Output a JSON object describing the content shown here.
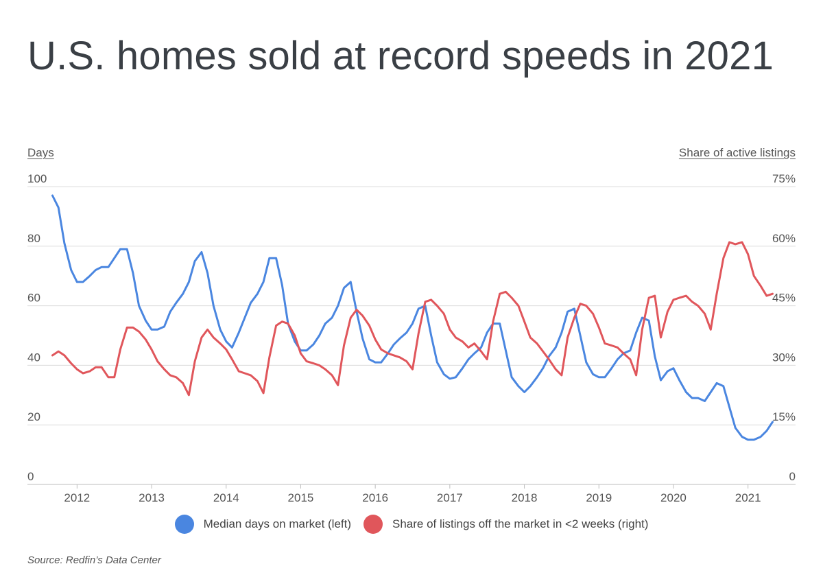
{
  "chart_data": {
    "type": "line",
    "title": "U.S. homes sold at record speeds in 2021",
    "left_axis": {
      "label": "Days",
      "min": 0,
      "max": 100,
      "ticks": [
        0,
        20,
        40,
        60,
        80,
        100
      ],
      "tick_labels": [
        "0",
        "20",
        "40",
        "60",
        "80",
        "100"
      ]
    },
    "right_axis": {
      "label": "Share of active listings",
      "min": 0,
      "max": 75,
      "ticks": [
        0,
        15,
        30,
        45,
        60,
        75
      ],
      "tick_labels": [
        "0",
        "15%",
        "30%",
        "45%",
        "60%",
        "75%"
      ]
    },
    "x_axis": {
      "min": 2011.5,
      "max": 2021.5,
      "ticks": [
        2012,
        2013,
        2014,
        2015,
        2016,
        2017,
        2018,
        2019,
        2020,
        2021
      ],
      "tick_labels": [
        "2012",
        "2013",
        "2014",
        "2015",
        "2016",
        "2017",
        "2018",
        "2019",
        "2020",
        "2021"
      ]
    },
    "grid": true,
    "legend": "bottom",
    "series": [
      {
        "name": "Median days on market (left)",
        "color": "#4a86e0",
        "axis": "left",
        "points": [
          [
            2011.67,
            97
          ],
          [
            2011.75,
            93
          ],
          [
            2011.83,
            81
          ],
          [
            2011.92,
            72
          ],
          [
            2012.0,
            68
          ],
          [
            2012.08,
            68
          ],
          [
            2012.17,
            70
          ],
          [
            2012.25,
            72
          ],
          [
            2012.33,
            73
          ],
          [
            2012.42,
            73
          ],
          [
            2012.5,
            76
          ],
          [
            2012.58,
            79
          ],
          [
            2012.67,
            79
          ],
          [
            2012.75,
            71
          ],
          [
            2012.83,
            60
          ],
          [
            2012.92,
            55
          ],
          [
            2013.0,
            52
          ],
          [
            2013.08,
            52
          ],
          [
            2013.17,
            53
          ],
          [
            2013.25,
            58
          ],
          [
            2013.33,
            61
          ],
          [
            2013.42,
            64
          ],
          [
            2013.5,
            68
          ],
          [
            2013.58,
            75
          ],
          [
            2013.67,
            78
          ],
          [
            2013.75,
            71
          ],
          [
            2013.83,
            60
          ],
          [
            2013.92,
            52
          ],
          [
            2014.0,
            48
          ],
          [
            2014.08,
            46
          ],
          [
            2014.17,
            51
          ],
          [
            2014.25,
            56
          ],
          [
            2014.33,
            61
          ],
          [
            2014.42,
            64
          ],
          [
            2014.5,
            68
          ],
          [
            2014.58,
            76
          ],
          [
            2014.67,
            76
          ],
          [
            2014.75,
            67
          ],
          [
            2014.83,
            54
          ],
          [
            2014.92,
            48
          ],
          [
            2015.0,
            45
          ],
          [
            2015.08,
            45
          ],
          [
            2015.17,
            47
          ],
          [
            2015.25,
            50
          ],
          [
            2015.33,
            54
          ],
          [
            2015.42,
            56
          ],
          [
            2015.5,
            60
          ],
          [
            2015.58,
            66
          ],
          [
            2015.67,
            68
          ],
          [
            2015.75,
            58
          ],
          [
            2015.83,
            49
          ],
          [
            2015.92,
            42
          ],
          [
            2016.0,
            41
          ],
          [
            2016.08,
            41
          ],
          [
            2016.17,
            44
          ],
          [
            2016.25,
            47
          ],
          [
            2016.33,
            49
          ],
          [
            2016.42,
            51
          ],
          [
            2016.5,
            54
          ],
          [
            2016.58,
            59
          ],
          [
            2016.67,
            60
          ],
          [
            2016.75,
            50
          ],
          [
            2016.83,
            41
          ],
          [
            2016.92,
            37
          ],
          [
            2017.0,
            35.5
          ],
          [
            2017.08,
            36
          ],
          [
            2017.17,
            39
          ],
          [
            2017.25,
            42
          ],
          [
            2017.33,
            44
          ],
          [
            2017.42,
            46
          ],
          [
            2017.5,
            51
          ],
          [
            2017.58,
            54
          ],
          [
            2017.67,
            54
          ],
          [
            2017.75,
            45
          ],
          [
            2017.83,
            36
          ],
          [
            2017.92,
            33
          ],
          [
            2018.0,
            31
          ],
          [
            2018.08,
            33
          ],
          [
            2018.17,
            36
          ],
          [
            2018.25,
            39
          ],
          [
            2018.33,
            43
          ],
          [
            2018.42,
            46
          ],
          [
            2018.5,
            51
          ],
          [
            2018.58,
            58
          ],
          [
            2018.67,
            59
          ],
          [
            2018.75,
            50
          ],
          [
            2018.83,
            41
          ],
          [
            2018.92,
            37
          ],
          [
            2019.0,
            36
          ],
          [
            2019.08,
            36
          ],
          [
            2019.17,
            39
          ],
          [
            2019.25,
            42
          ],
          [
            2019.33,
            44
          ],
          [
            2019.42,
            45
          ],
          [
            2019.5,
            51
          ],
          [
            2019.58,
            56
          ],
          [
            2019.67,
            55
          ],
          [
            2019.75,
            43
          ],
          [
            2019.83,
            35
          ],
          [
            2019.92,
            38
          ],
          [
            2020.0,
            39
          ],
          [
            2020.08,
            35
          ],
          [
            2020.17,
            31
          ],
          [
            2020.25,
            29
          ],
          [
            2020.33,
            29
          ],
          [
            2020.42,
            28
          ],
          [
            2020.5,
            31
          ],
          [
            2020.58,
            34
          ],
          [
            2020.67,
            33
          ],
          [
            2020.75,
            26
          ],
          [
            2020.83,
            19
          ],
          [
            2020.92,
            16
          ],
          [
            2021.0,
            15
          ],
          [
            2021.08,
            15
          ],
          [
            2021.17,
            16
          ],
          [
            2021.25,
            18
          ],
          [
            2021.33,
            21
          ]
        ]
      },
      {
        "name": "Share of listings off the market in <2 weeks (right)",
        "color": "#e0565b",
        "axis": "right",
        "points": [
          [
            2011.67,
            32.5
          ],
          [
            2011.75,
            33.5
          ],
          [
            2011.83,
            32.5
          ],
          [
            2011.92,
            30.5
          ],
          [
            2012.0,
            29
          ],
          [
            2012.08,
            28
          ],
          [
            2012.17,
            28.5
          ],
          [
            2012.25,
            29.5
          ],
          [
            2012.33,
            29.5
          ],
          [
            2012.42,
            27
          ],
          [
            2012.5,
            27
          ],
          [
            2012.58,
            34
          ],
          [
            2012.67,
            39.5
          ],
          [
            2012.75,
            39.5
          ],
          [
            2012.83,
            38.5
          ],
          [
            2012.92,
            36.5
          ],
          [
            2013.0,
            34
          ],
          [
            2013.08,
            31
          ],
          [
            2013.17,
            29
          ],
          [
            2013.25,
            27.5
          ],
          [
            2013.33,
            27
          ],
          [
            2013.42,
            25.5
          ],
          [
            2013.5,
            22.5
          ],
          [
            2013.58,
            31
          ],
          [
            2013.67,
            37
          ],
          [
            2013.75,
            39
          ],
          [
            2013.83,
            37
          ],
          [
            2013.92,
            35.5
          ],
          [
            2014.0,
            34
          ],
          [
            2014.08,
            31.5
          ],
          [
            2014.17,
            28.5
          ],
          [
            2014.25,
            28
          ],
          [
            2014.33,
            27.5
          ],
          [
            2014.42,
            26
          ],
          [
            2014.5,
            23
          ],
          [
            2014.58,
            32
          ],
          [
            2014.67,
            40
          ],
          [
            2014.75,
            41
          ],
          [
            2014.83,
            40.5
          ],
          [
            2014.92,
            37.5
          ],
          [
            2015.0,
            33
          ],
          [
            2015.08,
            31
          ],
          [
            2015.17,
            30.5
          ],
          [
            2015.25,
            30
          ],
          [
            2015.33,
            29
          ],
          [
            2015.42,
            27.5
          ],
          [
            2015.5,
            25
          ],
          [
            2015.58,
            35
          ],
          [
            2015.67,
            42
          ],
          [
            2015.75,
            44
          ],
          [
            2015.83,
            42.5
          ],
          [
            2015.92,
            40
          ],
          [
            2016.0,
            36.5
          ],
          [
            2016.08,
            34
          ],
          [
            2016.17,
            33
          ],
          [
            2016.25,
            32.5
          ],
          [
            2016.33,
            32
          ],
          [
            2016.42,
            31
          ],
          [
            2016.5,
            29
          ],
          [
            2016.58,
            38
          ],
          [
            2016.67,
            46
          ],
          [
            2016.75,
            46.5
          ],
          [
            2016.83,
            45
          ],
          [
            2016.92,
            43
          ],
          [
            2017.0,
            39
          ],
          [
            2017.08,
            37
          ],
          [
            2017.17,
            36
          ],
          [
            2017.25,
            34.5
          ],
          [
            2017.33,
            35.5
          ],
          [
            2017.42,
            33.5
          ],
          [
            2017.5,
            31.5
          ],
          [
            2017.58,
            41
          ],
          [
            2017.67,
            48
          ],
          [
            2017.75,
            48.5
          ],
          [
            2017.83,
            47
          ],
          [
            2017.92,
            45
          ],
          [
            2018.0,
            41
          ],
          [
            2018.08,
            37
          ],
          [
            2018.17,
            35.5
          ],
          [
            2018.25,
            33.5
          ],
          [
            2018.33,
            31.5
          ],
          [
            2018.42,
            29
          ],
          [
            2018.5,
            27.5
          ],
          [
            2018.58,
            37
          ],
          [
            2018.67,
            42
          ],
          [
            2018.75,
            45.5
          ],
          [
            2018.83,
            45
          ],
          [
            2018.92,
            43
          ],
          [
            2019.0,
            39.5
          ],
          [
            2019.08,
            35.5
          ],
          [
            2019.17,
            35
          ],
          [
            2019.25,
            34.5
          ],
          [
            2019.33,
            33
          ],
          [
            2019.42,
            31.5
          ],
          [
            2019.5,
            27.5
          ],
          [
            2019.58,
            39
          ],
          [
            2019.67,
            47
          ],
          [
            2019.75,
            47.5
          ],
          [
            2019.83,
            37
          ],
          [
            2019.92,
            43.5
          ],
          [
            2020.0,
            46.5
          ],
          [
            2020.08,
            47
          ],
          [
            2020.17,
            47.5
          ],
          [
            2020.25,
            46
          ],
          [
            2020.33,
            45
          ],
          [
            2020.42,
            43
          ],
          [
            2020.5,
            39
          ],
          [
            2020.58,
            48
          ],
          [
            2020.67,
            57
          ],
          [
            2020.75,
            61
          ],
          [
            2020.83,
            60.5
          ],
          [
            2020.92,
            61
          ],
          [
            2021.0,
            58
          ],
          [
            2021.08,
            52.5
          ],
          [
            2021.17,
            50
          ],
          [
            2021.25,
            47.5
          ],
          [
            2021.33,
            48
          ]
        ]
      }
    ],
    "source": "Source:  Redfin’s Data Center"
  }
}
